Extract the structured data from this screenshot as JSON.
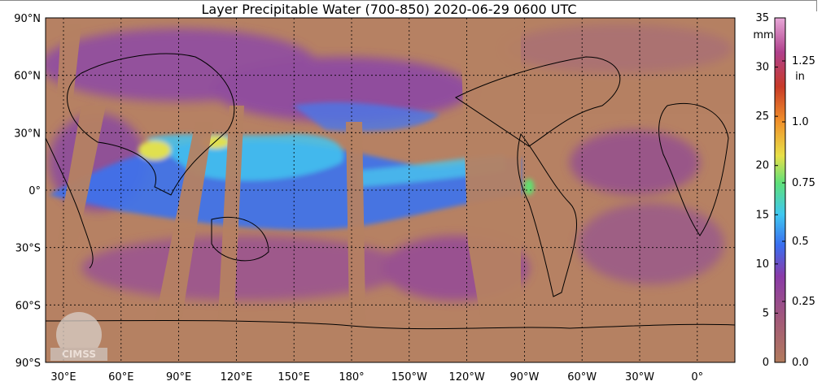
{
  "title": "Layer Precipitable Water (700-850)  2020-06-29 0600 UTC",
  "latitude_labels": [
    "90°N",
    "60°N",
    "30°N",
    "0°",
    "30°S",
    "60°S",
    "90°S"
  ],
  "longitude_labels": [
    "30°E",
    "60°E",
    "90°E",
    "120°E",
    "150°E",
    "180°",
    "150°W",
    "120°W",
    "90°W",
    "60°W",
    "30°W",
    "0°"
  ],
  "colorbar": {
    "mm_unit": "mm",
    "in_unit": "in",
    "mm_ticks": [
      "0",
      "5",
      "10",
      "15",
      "20",
      "25",
      "30",
      "35"
    ],
    "in_ticks": [
      "0.0",
      "0.25",
      "0.5",
      "0.75",
      "1.0",
      "1.25"
    ]
  },
  "logo": "CIMSS"
}
